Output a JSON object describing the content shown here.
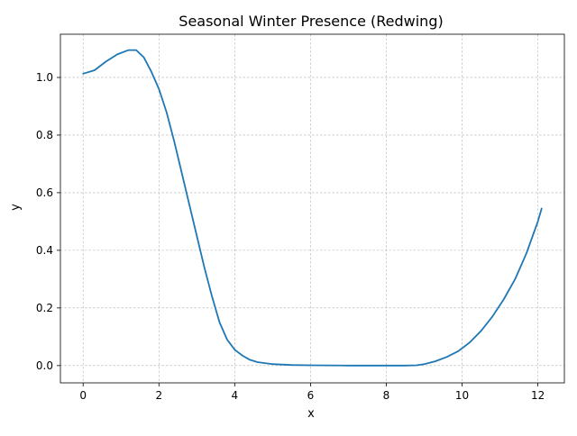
{
  "chart_data": {
    "type": "line",
    "title": "Seasonal Winter Presence (Redwing)",
    "xlabel": "x",
    "ylabel": "y",
    "xlim": [
      -0.6,
      12.7
    ],
    "ylim": [
      -0.06,
      1.15
    ],
    "xticks": [
      0,
      2,
      4,
      6,
      8,
      10,
      12
    ],
    "yticks": [
      0.0,
      0.2,
      0.4,
      0.6,
      0.8,
      1.0
    ],
    "xtick_labels": [
      "0",
      "2",
      "4",
      "6",
      "8",
      "10",
      "12"
    ],
    "ytick_labels": [
      "0.0",
      "0.2",
      "0.4",
      "0.6",
      "0.8",
      "1.0"
    ],
    "grid": true,
    "series": [
      {
        "name": "",
        "color": "#1f77b4",
        "x": [
          0,
          0.3,
          0.6,
          0.9,
          1.2,
          1.4,
          1.6,
          1.8,
          2.0,
          2.2,
          2.4,
          2.6,
          2.8,
          3.0,
          3.2,
          3.4,
          3.6,
          3.8,
          4.0,
          4.2,
          4.4,
          4.6,
          5.0,
          5.5,
          6.0,
          7.0,
          8.0,
          8.5,
          8.8,
          9.0,
          9.3,
          9.6,
          9.9,
          10.2,
          10.5,
          10.8,
          11.1,
          11.4,
          11.7,
          12.0,
          12.1
        ],
        "y": [
          1.013,
          1.025,
          1.055,
          1.08,
          1.095,
          1.095,
          1.07,
          1.02,
          0.96,
          0.88,
          0.78,
          0.67,
          0.56,
          0.45,
          0.34,
          0.24,
          0.15,
          0.09,
          0.055,
          0.035,
          0.02,
          0.012,
          0.005,
          0.002,
          0.001,
          0.0,
          0.0,
          0.0,
          0.001,
          0.005,
          0.015,
          0.03,
          0.05,
          0.08,
          0.12,
          0.17,
          0.23,
          0.3,
          0.39,
          0.5,
          0.545
        ]
      }
    ]
  }
}
